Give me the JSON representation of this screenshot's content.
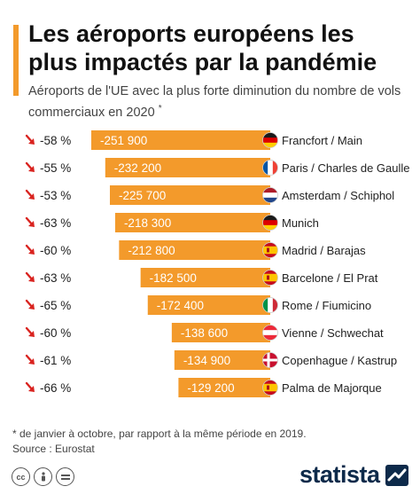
{
  "header": {
    "title": "Les aéroports européens les plus impactés par la pandémie",
    "subtitle": "Aéroports de l'UE avec la plus forte diminution du nombre de vols commerciaux en 2020",
    "subtitle_mark": "*"
  },
  "chart_data": {
    "type": "bar",
    "orientation": "horizontal",
    "categories": [
      "Francfort / Main",
      "Paris / Charles de Gaulle",
      "Amsterdam / Schiphol",
      "Munich",
      "Madrid / Barajas",
      "Barcelone / El Prat",
      "Rome / Fiumicino",
      "Vienne / Schwechat",
      "Copenhague / Kastrup",
      "Palma de Majorque"
    ],
    "values": [
      -251900,
      -232200,
      -225700,
      -218300,
      -212800,
      -182500,
      -172400,
      -138600,
      -134900,
      -129200
    ],
    "value_labels": [
      "-251 900",
      "-232 200",
      "-225 700",
      "-218 300",
      "-212 800",
      "-182 500",
      "-172 400",
      "-138 600",
      "-134 900",
      "-129 200"
    ],
    "percent_change": [
      "-58 %",
      "-55 %",
      "-53 %",
      "-63 %",
      "-60 %",
      "-63 %",
      "-65 %",
      "-60 %",
      "-61 %",
      "-66 %"
    ],
    "flags": [
      "germany",
      "france",
      "netherlands",
      "germany",
      "spain",
      "spain",
      "italy",
      "austria",
      "denmark",
      "spain"
    ],
    "bar_color": "#f39a2b",
    "arrow_color": "#d9231f"
  },
  "footer": {
    "footnote": "* de janvier à octobre, par rapport à la même période en 2019.",
    "source": "Source : Eurostat",
    "brand": "statista"
  },
  "colors": {
    "accent": "#f39a2b",
    "brand": "#0d2a4a"
  }
}
